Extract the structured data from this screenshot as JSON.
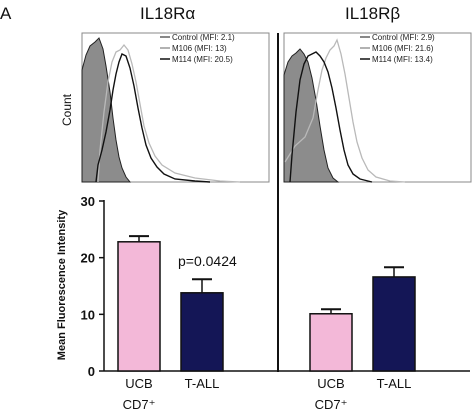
{
  "panel_label": "A",
  "colors": {
    "control_fill": "#8c8c8c",
    "m106_line": "#b9b9b9",
    "m114_line": "#111111",
    "ucb_bar": "#f3b8d8",
    "tall_bar": "#141656",
    "divider": "#111111"
  },
  "chart_data": [
    {
      "type": "line",
      "title": "IL18Rα",
      "ylabel": "Count",
      "xlabel": "",
      "series": [
        {
          "name": "Control (MFI: 2.1)",
          "style": "filled",
          "color": "#8c8c8c"
        },
        {
          "name": "M106 (MFI: 13)",
          "style": "line",
          "color": "#b9b9b9"
        },
        {
          "name": "M114 (MFI: 20.5)",
          "style": "line",
          "color": "#111111"
        }
      ],
      "legend": "top-right",
      "grid": false
    },
    {
      "type": "line",
      "title": "IL18Rβ",
      "ylabel": "",
      "xlabel": "",
      "series": [
        {
          "name": "Control (MFI: 2.9)",
          "style": "filled",
          "color": "#8c8c8c"
        },
        {
          "name": "M106 (MFI: 21.6)",
          "style": "line",
          "color": "#b9b9b9"
        },
        {
          "name": "M114 (MFI: 13.4)",
          "style": "line",
          "color": "#111111"
        }
      ],
      "legend": "top-right",
      "grid": false
    },
    {
      "type": "bar",
      "ylabel": "Mean Fluorescence Intensity",
      "ylim": [
        0,
        30
      ],
      "yticks": [
        0,
        10,
        20,
        30
      ],
      "groups": [
        {
          "name": "IL18Rα",
          "annotation": "p=0.0424",
          "bars": [
            {
              "category_line1": "UCB",
              "category_line2": "CD7⁺",
              "value": 22.8,
              "error": 1.0,
              "color": "#f3b8d8"
            },
            {
              "category_line1": "T-ALL",
              "category_line2": "",
              "value": 13.8,
              "error": 2.4,
              "color": "#141656"
            }
          ]
        },
        {
          "name": "IL18Rβ",
          "annotation": "",
          "bars": [
            {
              "category_line1": "UCB",
              "category_line2": "CD7⁺",
              "value": 10.1,
              "error": 0.8,
              "color": "#f3b8d8"
            },
            {
              "category_line1": "T-ALL",
              "category_line2": "",
              "value": 16.6,
              "error": 1.7,
              "color": "#141656"
            }
          ]
        }
      ]
    }
  ]
}
